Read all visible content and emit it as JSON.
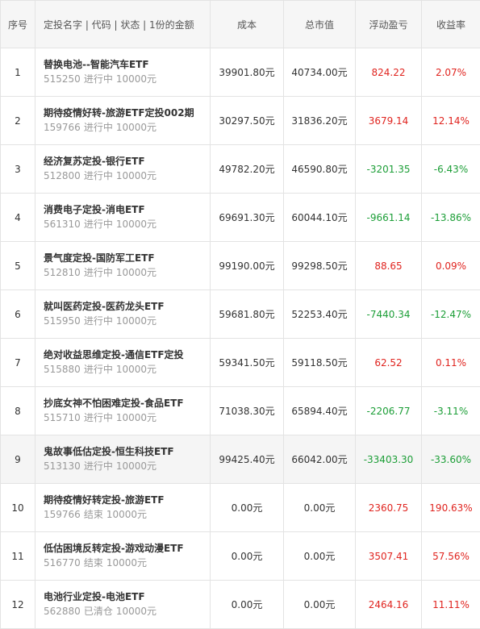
{
  "headers": {
    "index": "序号",
    "name": "定投名字 | 代码 | 状态 | 1份的金额",
    "cost": "成本",
    "market_value": "总市值",
    "floating_pnl": "浮动盈亏",
    "yield": "收益率"
  },
  "colors": {
    "positive": "#e0241f",
    "negative": "#1c9e37",
    "header_bg": "#f6f6f6",
    "border": "#e3e3e3"
  },
  "rows": [
    {
      "index": "1",
      "name": "替换电池--智能汽车ETF",
      "code": "515250",
      "status": "进行中",
      "unit": "10000元",
      "cost": "39901.80元",
      "market_value": "40734.00元",
      "pnl": "824.22",
      "yield": "2.07%",
      "direction": "positive"
    },
    {
      "index": "2",
      "name": "期待疫情好转-旅游ETF定投002期",
      "code": "159766",
      "status": "进行中",
      "unit": "10000元",
      "cost": "30297.50元",
      "market_value": "31836.20元",
      "pnl": "3679.14",
      "yield": "12.14%",
      "direction": "positive"
    },
    {
      "index": "3",
      "name": "经济复苏定投-银行ETF",
      "code": "512800",
      "status": "进行中",
      "unit": "10000元",
      "cost": "49782.20元",
      "market_value": "46590.80元",
      "pnl": "-3201.35",
      "yield": "-6.43%",
      "direction": "negative"
    },
    {
      "index": "4",
      "name": "消费电子定投-消电ETF",
      "code": "561310",
      "status": "进行中",
      "unit": "10000元",
      "cost": "69691.30元",
      "market_value": "60044.10元",
      "pnl": "-9661.14",
      "yield": "-13.86%",
      "direction": "negative"
    },
    {
      "index": "5",
      "name": "景气度定投-国防军工ETF",
      "code": "512810",
      "status": "进行中",
      "unit": "10000元",
      "cost": "99190.00元",
      "market_value": "99298.50元",
      "pnl": "88.65",
      "yield": "0.09%",
      "direction": "positive"
    },
    {
      "index": "6",
      "name": "就叫医药定投-医药龙头ETF",
      "code": "515950",
      "status": "进行中",
      "unit": "10000元",
      "cost": "59681.80元",
      "market_value": "52253.40元",
      "pnl": "-7440.34",
      "yield": "-12.47%",
      "direction": "negative"
    },
    {
      "index": "7",
      "name": "绝对收益思维定投-通信ETF定投",
      "code": "515880",
      "status": "进行中",
      "unit": "10000元",
      "cost": "59341.50元",
      "market_value": "59118.50元",
      "pnl": "62.52",
      "yield": "0.11%",
      "direction": "positive"
    },
    {
      "index": "8",
      "name": "抄底女神不怕困难定投-食品ETF",
      "code": "515710",
      "status": "进行中",
      "unit": "10000元",
      "cost": "71038.30元",
      "market_value": "65894.40元",
      "pnl": "-2206.77",
      "yield": "-3.11%",
      "direction": "negative"
    },
    {
      "index": "9",
      "name": "鬼故事低估定投-恒生科技ETF",
      "code": "513130",
      "status": "进行中",
      "unit": "10000元",
      "cost": "99425.40元",
      "market_value": "66042.00元",
      "pnl": "-33403.30",
      "yield": "-33.60%",
      "direction": "negative"
    },
    {
      "index": "10",
      "name": "期待疫情好转定投-旅游ETF",
      "code": "159766",
      "status": "结束",
      "unit": "10000元",
      "cost": "0.00元",
      "market_value": "0.00元",
      "pnl": "2360.75",
      "yield": "190.63%",
      "direction": "positive"
    },
    {
      "index": "11",
      "name": "低估困境反转定投-游戏动漫ETF",
      "code": "516770",
      "status": "结束",
      "unit": "10000元",
      "cost": "0.00元",
      "market_value": "0.00元",
      "pnl": "3507.41",
      "yield": "57.56%",
      "direction": "positive"
    },
    {
      "index": "12",
      "name": "电池行业定投-电池ETF",
      "code": "562880",
      "status": "已清仓",
      "unit": "10000元",
      "cost": "0.00元",
      "market_value": "0.00元",
      "pnl": "2464.16",
      "yield": "11.11%",
      "direction": "positive"
    }
  ]
}
